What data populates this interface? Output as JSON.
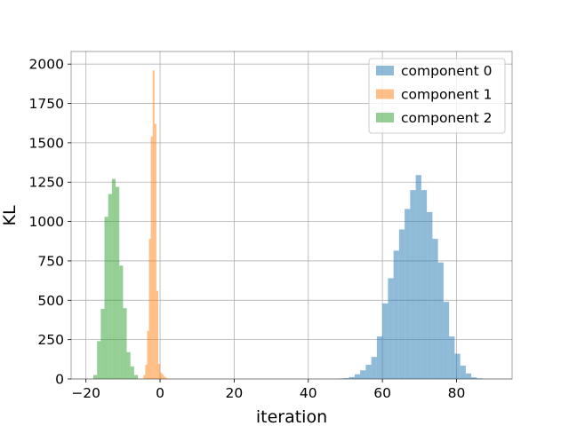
{
  "chart_data": {
    "type": "histogram",
    "xlabel": "iteration",
    "ylabel": "KL",
    "xlim": [
      -24,
      95
    ],
    "ylim": [
      0,
      2080
    ],
    "x_ticks": [
      -20,
      0,
      20,
      40,
      60,
      80
    ],
    "x_tick_labels": [
      "−20",
      "0",
      "20",
      "40",
      "60",
      "80"
    ],
    "y_ticks": [
      0,
      250,
      500,
      750,
      1000,
      1250,
      1500,
      1750,
      2000
    ],
    "y_tick_labels": [
      "0",
      "250",
      "500",
      "750",
      "1000",
      "1250",
      "1500",
      "1750",
      "2000"
    ],
    "grid": true,
    "legend_position": "top-right",
    "series": [
      {
        "name": "component 0",
        "color": "#1f77b4",
        "bin_start": 48,
        "bin_width": 1.5,
        "values": [
          2,
          5,
          12,
          30,
          55,
          90,
          140,
          270,
          480,
          640,
          815,
          950,
          1080,
          1200,
          1295,
          1200,
          1060,
          890,
          740,
          490,
          270,
          160,
          85,
          35,
          10,
          4
        ]
      },
      {
        "name": "component 1",
        "color": "#ff7f0e",
        "bin_start": -5.0,
        "bin_width": 0.5,
        "values": [
          3,
          25,
          90,
          305,
          890,
          1540,
          1960,
          1620,
          560,
          95,
          40,
          30,
          15,
          5
        ]
      },
      {
        "name": "component 2",
        "color": "#2ca02c",
        "bin_start": -18.0,
        "bin_width": 1.0,
        "values": [
          25,
          240,
          445,
          1030,
          1175,
          1270,
          1220,
          720,
          450,
          170,
          80,
          25
        ]
      }
    ]
  }
}
